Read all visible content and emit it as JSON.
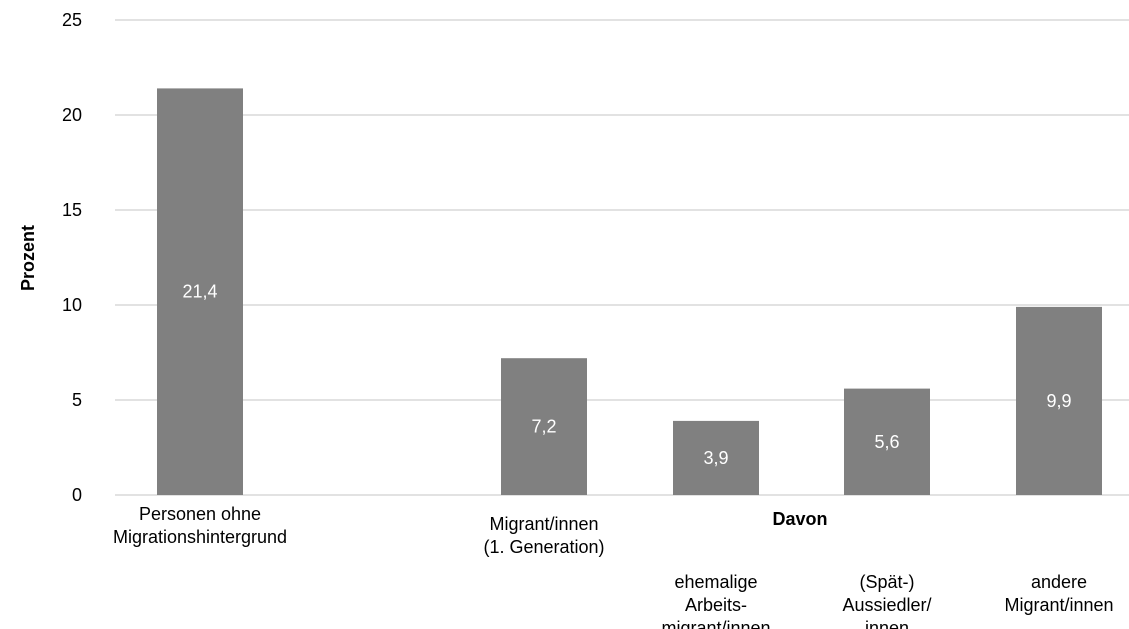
{
  "chart_data": {
    "type": "bar",
    "ylabel": "Prozent",
    "ylim": [
      0,
      25
    ],
    "yticks": [
      "0",
      "5",
      "10",
      "15",
      "20",
      "25"
    ],
    "grid": true,
    "group_label": "Davon",
    "categories": [
      [
        "Personen ohne",
        "Migrationshintergrund"
      ],
      [
        "Migrant/innen",
        "(1. Generation)"
      ],
      [
        "ehemalige",
        "Arbeits-",
        "migrant/innen"
      ],
      [
        "(Spät-)",
        "Aussiedler/",
        "innen"
      ],
      [
        "andere",
        "Migrant/innen"
      ]
    ],
    "values": [
      21.4,
      7.2,
      3.9,
      5.6,
      9.9
    ],
    "data_labels": [
      "21,4",
      "7,2",
      "3,9",
      "5,6",
      "9,9"
    ],
    "bar_color": "#808080",
    "grid_color": "#d9d9d9"
  }
}
